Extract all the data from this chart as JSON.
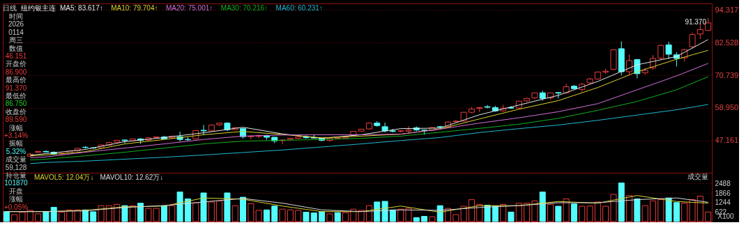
{
  "chart_data": [
    {
      "type": "candlestick",
      "title": "日线",
      "subtitle": "纽约银主连",
      "categories": [
        null,
        null,
        null,
        null,
        null,
        null,
        null,
        null,
        null,
        null,
        null,
        null,
        null,
        null,
        null,
        null,
        null,
        null,
        null,
        null,
        null,
        null,
        null,
        null,
        null,
        null,
        null,
        null,
        null,
        null,
        null,
        null,
        null,
        null,
        null,
        null,
        null,
        null,
        null,
        null,
        null,
        null,
        null,
        null,
        null,
        null,
        null,
        null,
        null,
        null,
        null,
        null,
        null,
        null,
        null,
        null,
        null,
        null,
        null,
        null,
        null,
        null,
        null,
        null,
        null,
        null,
        null,
        null,
        null,
        null,
        null,
        null,
        null,
        null,
        null,
        null,
        null,
        null,
        null,
        null,
        null,
        null,
        null,
        null,
        null,
        null,
        null,
        null,
        null,
        null
      ],
      "ohlc": [
        null,
        null,
        null,
        [
          41.6,
          42.8,
          41.3,
          42.3
        ],
        [
          43.0,
          43.4,
          42.8,
          43.3
        ],
        [
          43.3,
          43.6,
          43.0,
          43.1
        ],
        [
          43.0,
          43.3,
          42.0,
          42.3
        ],
        [
          42.4,
          42.7,
          42.2,
          42.6
        ],
        [
          42.7,
          43.6,
          42.5,
          43.4
        ],
        [
          43.6,
          44.5,
          43.4,
          44.4
        ],
        [
          44.8,
          45.2,
          44.3,
          44.7
        ],
        [
          44.6,
          44.8,
          44.2,
          44.5
        ],
        [
          44.6,
          45.7,
          44.5,
          45.6
        ],
        [
          45.6,
          46.6,
          45.3,
          46.5
        ],
        [
          46.6,
          47.4,
          46.4,
          47.3
        ],
        [
          47.4,
          47.6,
          46.3,
          47.2
        ],
        [
          47.1,
          47.9,
          46.9,
          47.8
        ],
        [
          47.8,
          48.1,
          46.0,
          47.3
        ],
        [
          47.4,
          48.3,
          47.2,
          48.2
        ],
        [
          48.3,
          48.6,
          48.1,
          48.5
        ],
        [
          48.5,
          48.9,
          47.6,
          47.8
        ],
        [
          48.2,
          48.9,
          47.8,
          48.8
        ],
        [
          48.6,
          50.4,
          46.9,
          47.6
        ],
        [
          47.6,
          48.4,
          47.0,
          47.5
        ],
        [
          47.8,
          50.9,
          47.6,
          50.8
        ],
        [
          50.9,
          52.8,
          49.2,
          50.7
        ],
        [
          50.7,
          53.0,
          50.5,
          52.8
        ],
        [
          52.9,
          53.6,
          52.4,
          53.5
        ],
        [
          53.5,
          53.8,
          50.6,
          51.1
        ],
        [
          51.1,
          52.0,
          50.9,
          51.8
        ],
        [
          51.5,
          51.8,
          47.9,
          48.6
        ],
        [
          48.6,
          49.0,
          47.6,
          48.8
        ],
        [
          48.7,
          49.4,
          48.0,
          49.0
        ],
        [
          49.0,
          49.3,
          47.5,
          48.4
        ],
        [
          48.4,
          48.5,
          46.3,
          47.1
        ],
        [
          47.2,
          47.6,
          45.9,
          47.4
        ],
        [
          47.6,
          48.2,
          47.2,
          48.0
        ],
        [
          48.0,
          48.8,
          47.8,
          48.6
        ],
        [
          48.6,
          49.0,
          47.9,
          48.2
        ],
        [
          48.3,
          49.4,
          48.0,
          48.1
        ],
        [
          48.0,
          48.2,
          46.9,
          47.3
        ],
        [
          47.3,
          48.1,
          46.8,
          48.0
        ],
        [
          48.0,
          48.6,
          47.8,
          48.4
        ],
        [
          48.1,
          48.6,
          48.0,
          48.5
        ],
        [
          49.1,
          50.6,
          48.9,
          50.5
        ],
        [
          50.6,
          51.4,
          50.3,
          51.3
        ],
        [
          51.4,
          53.7,
          51.2,
          53.5
        ],
        [
          53.5,
          54.2,
          52.2,
          52.6
        ],
        [
          52.2,
          53.7,
          50.2,
          50.7
        ],
        [
          50.7,
          51.4,
          50.1,
          50.5
        ],
        [
          50.5,
          51.0,
          50.1,
          50.7
        ],
        [
          50.6,
          52.4,
          50.0,
          51.0
        ],
        [
          51.8,
          52.3,
          50.6,
          51.0
        ],
        [
          51.0,
          51.2,
          49.3,
          50.9
        ],
        [
          50.9,
          52.1,
          50.6,
          51.9
        ],
        [
          52.2,
          52.5,
          51.5,
          52.1
        ],
        [
          52.1,
          54.1,
          51.9,
          53.9
        ],
        [
          54.0,
          54.6,
          53.8,
          54.2
        ],
        [
          54.2,
          57.5,
          54.0,
          57.4
        ],
        [
          57.4,
          59.3,
          57.0,
          58.5
        ],
        [
          58.8,
          59.3,
          57.4,
          59.1
        ],
        [
          59.4,
          60.0,
          58.8,
          59.2
        ],
        [
          59.1,
          59.7,
          57.6,
          57.9
        ],
        [
          57.9,
          60.1,
          57.6,
          58.9
        ],
        [
          59.1,
          59.6,
          58.6,
          58.9
        ],
        [
          58.9,
          61.5,
          58.5,
          61.4
        ],
        [
          61.5,
          62.6,
          61.1,
          62.4
        ],
        [
          62.6,
          64.5,
          62.2,
          64.4
        ],
        [
          64.4,
          65.2,
          61.6,
          62.4
        ],
        [
          62.6,
          64.5,
          62.0,
          64.4
        ],
        [
          64.5,
          64.7,
          62.4,
          64.3
        ],
        [
          64.4,
          67.7,
          64.1,
          66.6
        ],
        [
          66.8,
          67.2,
          65.9,
          65.9
        ],
        [
          65.6,
          68.0,
          64.8,
          67.5
        ],
        [
          68.0,
          69.8,
          67.4,
          69.4
        ],
        [
          69.4,
          72.1,
          69.1,
          71.9
        ],
        [
          71.9,
          73.1,
          71.2,
          72.2
        ],
        [
          72.9,
          80.1,
          72.6,
          79.9
        ],
        [
          80.3,
          82.9,
          70.7,
          72.0
        ],
        [
          72.0,
          78.2,
          70.7,
          76.0
        ],
        [
          76.4,
          76.6,
          69.6,
          71.3
        ],
        [
          71.6,
          73.4,
          71.0,
          72.5
        ],
        [
          73.4,
          78.0,
          72.7,
          76.8
        ],
        [
          76.9,
          81.7,
          76.2,
          81.5
        ],
        [
          81.7,
          82.8,
          76.6,
          78.3
        ],
        [
          78.1,
          79.0,
          73.9,
          76.8
        ],
        [
          77.0,
          80.3,
          75.7,
          79.9
        ],
        [
          81.0,
          86.1,
          80.4,
          85.4
        ],
        [
          85.6,
          89.5,
          83.8,
          87.2
        ],
        [
          86.9,
          91.37,
          86.75,
          89.59
        ]
      ],
      "colors": [
        null,
        null,
        null,
        "#e83c3c",
        "#e83c3c",
        "#54fcfc",
        "#54fcfc",
        "#e83c3c",
        "#e83c3c",
        "#e83c3c",
        "#54fcfc",
        "#54fcfc",
        "#e83c3c",
        "#e83c3c",
        "#e83c3c",
        "#54fcfc",
        "#e83c3c",
        "#54fcfc",
        "#e83c3c",
        "#e83c3c",
        "#54fcfc",
        "#e83c3c",
        "#54fcfc",
        "#54fcfc",
        "#e83c3c",
        "#54fcfc",
        "#e83c3c",
        "#e83c3c",
        "#54fcfc",
        "#e83c3c",
        "#54fcfc",
        "#e83c3c",
        "#e83c3c",
        "#54fcfc",
        "#54fcfc",
        "#e83c3c",
        "#e83c3c",
        "#e83c3c",
        "#54fcfc",
        "#54fcfc",
        "#54fcfc",
        "#e83c3c",
        "#e83c3c",
        "#e83c3c",
        "#e83c3c",
        "#e83c3c",
        "#e83c3c",
        "#54fcfc",
        "#54fcfc",
        "#54fcfc",
        "#e83c3c",
        "#e83c3c",
        "#54fcfc",
        "#54fcfc",
        "#e83c3c",
        "#54fcfc",
        "#e83c3c",
        "#e83c3c",
        "#e83c3c",
        "#e83c3c",
        "#e83c3c",
        "#54fcfc",
        "#54fcfc",
        "#e83c3c",
        "#54fcfc",
        "#e83c3c",
        "#e83c3c",
        "#e83c3c",
        "#54fcfc",
        "#e83c3c",
        "#54fcfc",
        "#e83c3c",
        "#54fcfc",
        "#e83c3c",
        "#e83c3c",
        "#e83c3c",
        "#e83c3c",
        "#e83c3c",
        "#54fcfc",
        "#e83c3c",
        "#54fcfc",
        "#e83c3c",
        "#e83c3c",
        "#e83c3c",
        "#54fcfc",
        "#54fcfc",
        "#e83c3c",
        "#e83c3c",
        "#e83c3c",
        "#e83c3c"
      ],
      "series": [
        {
          "type": "line",
          "name": "MA5: 83.617↑",
          "color": "#e6e6e6",
          "values": [
            null,
            null,
            null,
            41.9,
            null,
            42.5,
            null,
            null,
            null,
            null,
            44.0,
            null,
            null,
            null,
            null,
            46.8,
            null,
            null,
            null,
            null,
            48.3,
            null,
            null,
            null,
            null,
            50.0,
            null,
            null,
            null,
            null,
            52.0,
            null,
            null,
            null,
            null,
            49.6,
            null,
            null,
            null,
            null,
            48.0,
            null,
            null,
            null,
            null,
            49.3,
            null,
            null,
            null,
            null,
            51.5,
            null,
            null,
            null,
            null,
            51.7,
            null,
            null,
            null,
            null,
            56.5,
            null,
            null,
            null,
            null,
            60.0,
            null,
            null,
            null,
            null,
            63.5,
            null,
            null,
            null,
            null,
            68.5,
            null,
            null,
            null,
            null,
            74.5,
            null,
            null,
            null,
            null,
            77.5,
            null,
            null,
            null,
            83.6
          ]
        },
        {
          "type": "line",
          "name": "MA10: 79.704↑",
          "color": "#d8d030",
          "values": [
            null,
            null,
            null,
            41.7,
            null,
            42.0,
            null,
            null,
            null,
            null,
            43.2,
            null,
            null,
            null,
            null,
            46.0,
            null,
            null,
            null,
            null,
            47.6,
            null,
            null,
            null,
            null,
            49.3,
            null,
            null,
            null,
            null,
            50.5,
            null,
            null,
            null,
            null,
            49.4,
            null,
            null,
            null,
            null,
            48.2,
            null,
            null,
            null,
            null,
            48.8,
            null,
            null,
            null,
            null,
            49.5,
            null,
            null,
            null,
            null,
            51.4,
            null,
            null,
            null,
            null,
            55.0,
            null,
            null,
            null,
            null,
            58.5,
            null,
            null,
            null,
            null,
            61.6,
            null,
            null,
            null,
            null,
            66.3,
            null,
            null,
            null,
            null,
            72.0,
            null,
            null,
            null,
            null,
            76.5,
            null,
            null,
            null,
            79.7
          ]
        },
        {
          "type": "line",
          "name": "MA20: 75.001↑",
          "color": "#d070d8",
          "values": [
            null,
            null,
            null,
            41.0,
            null,
            41.3,
            null,
            null,
            null,
            null,
            43.0,
            null,
            null,
            null,
            null,
            44.5,
            null,
            null,
            null,
            null,
            46.0,
            null,
            null,
            null,
            null,
            47.6,
            null,
            null,
            null,
            null,
            48.8,
            null,
            null,
            null,
            null,
            49.2,
            null,
            null,
            null,
            null,
            49.3,
            null,
            null,
            null,
            null,
            49.3,
            null,
            null,
            null,
            null,
            49.5,
            null,
            null,
            null,
            null,
            51.3,
            null,
            null,
            null,
            null,
            53.5,
            null,
            null,
            null,
            null,
            55.4,
            null,
            null,
            null,
            null,
            57.6,
            null,
            null,
            null,
            null,
            60.5,
            null,
            null,
            null,
            null,
            65.5,
            null,
            null,
            null,
            null,
            70.5,
            null,
            null,
            null,
            75.0
          ]
        },
        {
          "type": "line",
          "name": "MA30: 70.216↑",
          "color": "#10b020",
          "values": [
            null,
            null,
            null,
            40.2,
            null,
            40.5,
            null,
            null,
            null,
            null,
            41.7,
            null,
            null,
            null,
            null,
            43.0,
            null,
            null,
            null,
            null,
            44.5,
            null,
            null,
            null,
            null,
            46.0,
            null,
            null,
            null,
            null,
            47.0,
            null,
            null,
            null,
            null,
            47.3,
            null,
            null,
            null,
            null,
            47.6,
            null,
            null,
            null,
            null,
            48.0,
            null,
            null,
            null,
            null,
            48.8,
            null,
            null,
            null,
            null,
            50.2,
            null,
            null,
            null,
            null,
            51.6,
            null,
            null,
            null,
            null,
            53.1,
            null,
            null,
            null,
            null,
            55.2,
            null,
            null,
            null,
            null,
            58.1,
            null,
            null,
            null,
            null,
            61.3,
            null,
            null,
            null,
            null,
            65.5,
            null,
            null,
            null,
            70.2
          ]
        },
        {
          "type": "line",
          "name": "MA60: 60.231↑",
          "color": "#20b8d0",
          "values": [
            null,
            null,
            null,
            38.9,
            null,
            39.3,
            null,
            null,
            null,
            null,
            39.8,
            null,
            null,
            null,
            null,
            40.5,
            null,
            null,
            null,
            null,
            41.2,
            null,
            null,
            null,
            null,
            42.0,
            null,
            null,
            null,
            null,
            42.9,
            null,
            null,
            null,
            null,
            43.8,
            null,
            null,
            null,
            null,
            44.9,
            null,
            null,
            null,
            null,
            46.0,
            null,
            null,
            null,
            null,
            47.2,
            null,
            null,
            null,
            null,
            48.3,
            null,
            null,
            null,
            null,
            50.1,
            null,
            null,
            null,
            null,
            51.5,
            null,
            null,
            null,
            null,
            52.8,
            null,
            null,
            null,
            null,
            54.5,
            null,
            null,
            null,
            null,
            56.4,
            null,
            null,
            null,
            null,
            58.3,
            null,
            null,
            null,
            60.2
          ]
        }
      ],
      "ylim": [
        35.6,
        96.6
      ],
      "yticks": [
        94.317,
        82.528,
        70.739,
        {
          "value": 58.95,
          "label": "58.950"
        },
        47.161
      ],
      "tick_labels": "y",
      "grid": "y",
      "legend": "top left",
      "annotations": [
        "时间",
        "2026",
        "0114",
        "周三",
        "数值",
        "46.151",
        "开盘价",
        "86.900",
        "最高价",
        "91.370",
        "最低价",
        "86.750",
        "收盘价",
        "89.590",
        "涨幅",
        "+3.14%",
        "振幅",
        "5.32%",
        "成交量",
        "59,128",
        "持仓量",
        "101870",
        "开盘",
        "涨幅",
        "+0.05%",
        "91.370"
      ]
    },
    {
      "type": "bar",
      "categories": [
        null,
        null,
        null,
        null,
        null,
        null,
        null,
        null,
        null,
        null,
        null,
        null,
        null,
        null,
        null,
        null,
        null,
        null,
        null,
        null,
        null,
        null,
        null,
        null,
        null,
        null,
        null,
        null,
        null,
        null,
        null,
        null,
        null,
        null,
        null,
        null,
        null,
        null,
        null,
        null,
        null,
        null,
        null,
        null,
        null,
        null,
        null,
        null,
        null,
        null,
        null,
        null,
        null,
        null,
        null,
        null,
        null,
        null,
        null,
        null,
        null,
        null,
        null,
        null,
        null,
        null,
        null,
        null,
        null,
        null,
        null,
        null,
        null,
        null,
        null,
        null,
        null,
        null,
        null,
        null,
        null,
        null,
        null,
        null,
        null,
        null,
        null,
        null,
        null,
        null
      ],
      "series": [
        {
          "type": "bar",
          "colors": [
            "#54fcfc",
            "#e83c3c",
            "#e83c3c",
            "#e83c3c",
            "#e83c3c",
            "#54fcfc",
            "#54fcfc",
            "#e83c3c",
            "#e83c3c",
            "#e83c3c",
            "#54fcfc",
            "#54fcfc",
            "#e83c3c",
            "#e83c3c",
            "#e83c3c",
            "#54fcfc",
            "#e83c3c",
            "#54fcfc",
            "#e83c3c",
            "#e83c3c",
            "#54fcfc",
            "#e83c3c",
            "#54fcfc",
            "#54fcfc",
            "#e83c3c",
            "#54fcfc",
            "#e83c3c",
            "#e83c3c",
            "#54fcfc",
            "#e83c3c",
            "#54fcfc",
            "#e83c3c",
            "#e83c3c",
            "#54fcfc",
            "#54fcfc",
            "#e83c3c",
            "#e83c3c",
            "#e83c3c",
            "#54fcfc",
            "#54fcfc",
            "#54fcfc",
            "#e83c3c",
            "#54fcfc",
            "#e83c3c",
            "#e83c3c",
            "#e83c3c",
            "#e83c3c",
            "#54fcfc",
            "#54fcfc",
            "#54fcfc",
            "#e83c3c",
            "#e83c3c",
            "#54fcfc",
            "#54fcfc",
            "#e83c3c",
            "#54fcfc",
            "#e83c3c",
            "#e83c3c",
            "#e83c3c",
            "#e83c3c",
            "#e83c3c",
            "#54fcfc",
            "#54fcfc",
            "#e83c3c",
            "#54fcfc",
            "#e83c3c",
            "#e83c3c",
            "#e83c3c",
            "#54fcfc",
            "#e83c3c",
            "#54fcfc",
            "#e83c3c",
            "#54fcfc",
            "#e83c3c",
            "#e83c3c",
            "#e83c3c",
            "#e83c3c",
            "#e83c3c",
            "#54fcfc",
            "#e83c3c",
            "#54fcfc",
            "#e83c3c",
            "#e83c3c",
            "#e83c3c",
            "#54fcfc",
            "#54fcfc",
            "#e83c3c",
            "#e83c3c",
            "#e83c3c",
            "#e83c3c"
          ],
          "values": [
            650,
            450,
            610,
            730,
            500,
            650,
            930,
            610,
            760,
            760,
            760,
            640,
            1040,
            1040,
            1120,
            1040,
            1040,
            1200,
            860,
            860,
            1040,
            1040,
            1930,
            1480,
            1230,
            1870,
            1280,
            1350,
            1870,
            1040,
            1590,
            1170,
            730,
            760,
            1010,
            810,
            760,
            730,
            610,
            560,
            650,
            500,
            580,
            580,
            810,
            730,
            1040,
            1280,
            1320,
            760,
            810,
            860,
            260,
            340,
            310,
            1040,
            860,
            450,
            1000,
            1430,
            1120,
            1070,
            1010,
            1120,
            620,
            1200,
            1200,
            1350,
            1930,
            1120,
            1000,
            1480,
            1150,
            1000,
            1010,
            1280,
            1000,
            1770,
            2520,
            1700,
            1480,
            1040,
            1350,
            1430,
            1540,
            1240,
            1200,
            1430,
            1660,
            620
          ]
        },
        {
          "type": "line",
          "name": "MAVOL5: 12.04万↓",
          "color": "#d8d030",
          "values": [
            650,
            null,
            null,
            null,
            null,
            650,
            null,
            null,
            null,
            null,
            730,
            null,
            null,
            null,
            null,
            960,
            null,
            null,
            null,
            null,
            1010,
            null,
            null,
            null,
            null,
            1540,
            null,
            null,
            null,
            null,
            1460,
            null,
            null,
            null,
            null,
            1010,
            null,
            null,
            null,
            null,
            650,
            null,
            null,
            null,
            null,
            650,
            null,
            null,
            null,
            null,
            1010,
            null,
            null,
            null,
            null,
            610,
            null,
            null,
            null,
            null,
            1040,
            null,
            null,
            null,
            null,
            1040,
            null,
            null,
            null,
            null,
            1310,
            null,
            null,
            null,
            null,
            1200,
            null,
            null,
            null,
            null,
            1700,
            null,
            null,
            null,
            null,
            1310,
            null,
            null,
            null,
            1200
          ]
        },
        {
          "type": "line",
          "name": "MAVOL10: 12.62万↓",
          "color": "#d8d8d8",
          "values": [
            650,
            null,
            null,
            null,
            null,
            650,
            null,
            null,
            null,
            null,
            700,
            null,
            null,
            null,
            null,
            920,
            null,
            null,
            null,
            null,
            1040,
            null,
            null,
            null,
            null,
            1280,
            null,
            null,
            null,
            null,
            1510,
            null,
            null,
            null,
            null,
            1200,
            null,
            null,
            null,
            null,
            760,
            null,
            null,
            null,
            null,
            650,
            null,
            null,
            null,
            null,
            760,
            null,
            null,
            null,
            null,
            730,
            null,
            null,
            null,
            null,
            920,
            null,
            null,
            null,
            null,
            1040,
            null,
            null,
            null,
            null,
            1230,
            null,
            null,
            null,
            null,
            1230,
            null,
            null,
            null,
            null,
            1430,
            null,
            null,
            null,
            null,
            1540,
            null,
            null,
            null,
            1260
          ]
        }
      ],
      "ylim": [
        0,
        3188
      ],
      "yticks": [
        622,
        1244,
        1866,
        2488
      ],
      "tick_labels": "y",
      "grid": "y",
      "legend": "top left",
      "annotations": [
        "成交量",
        "X100"
      ]
    }
  ]
}
